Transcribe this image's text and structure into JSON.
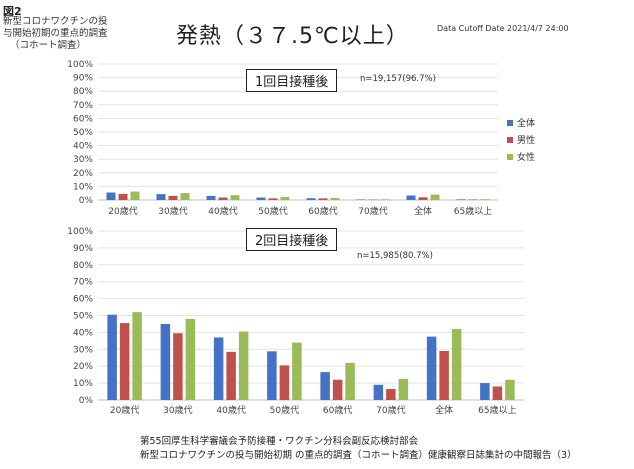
{
  "figure_label": "図2",
  "survey_title_lines": [
    "新型コロナワクチンの投",
    "与開始初期の重点的調査",
    "（コホート調査）"
  ],
  "main_title": "発熱（３７.5℃以上）",
  "cutoff": "Data Cutoff Date 2021/4/7 24:00",
  "legend": [
    "全体",
    "男性",
    "女性"
  ],
  "footer_lines": [
    "第55回厚生科学審議会予防接種・ワクチン分科会副反応検討部会",
    "新型コロナワクチンの投与開始初期 の重点的調査（コホート調査）健康観察日誌集計の中間報告（3）"
  ],
  "colors": {
    "全体": "#4472c4",
    "男性": "#c0504d",
    "女性": "#9bbb59"
  },
  "chart_data": [
    {
      "type": "bar",
      "dose_label": "1回目接種後",
      "n_label": "n=19,157(96.7%)",
      "categories": [
        "20歳代",
        "30歳代",
        "40歳代",
        "50歳代",
        "60歳代",
        "70歳代",
        "全体",
        "65歳以上"
      ],
      "y_ticks": [
        "0%",
        "10%",
        "20%",
        "30%",
        "40%",
        "50%",
        "60%",
        "70%",
        "80%",
        "90%",
        "100%"
      ],
      "ylim": [
        0,
        100
      ],
      "series": [
        {
          "name": "全体",
          "values": [
            5.5,
            4.3,
            3.0,
            1.8,
            1.3,
            0.4,
            3.3,
            0.5
          ]
        },
        {
          "name": "男性",
          "values": [
            4.5,
            3.0,
            1.8,
            1.2,
            1.2,
            0.3,
            2.0,
            0.4
          ]
        },
        {
          "name": "女性",
          "values": [
            6.2,
            5.1,
            3.6,
            2.2,
            1.5,
            0.5,
            4.0,
            0.6
          ]
        }
      ]
    },
    {
      "type": "bar",
      "dose_label": "2回目接種後",
      "n_label": "n=15,985(80.7%)",
      "categories": [
        "20歳代",
        "30歳代",
        "40歳代",
        "50歳代",
        "60歳代",
        "70歳代",
        "全体",
        "65歳以上"
      ],
      "y_ticks": [
        "0%",
        "10%",
        "20%",
        "30%",
        "40%",
        "50%",
        "60%",
        "70%",
        "80%",
        "90%",
        "100%"
      ],
      "ylim": [
        0,
        100
      ],
      "series": [
        {
          "name": "全体",
          "values": [
            50.5,
            45.0,
            37.0,
            28.8,
            16.5,
            9.0,
            37.5,
            10.0
          ]
        },
        {
          "name": "男性",
          "values": [
            45.5,
            39.5,
            28.5,
            20.5,
            12.0,
            6.5,
            29.0,
            8.0
          ]
        },
        {
          "name": "女性",
          "values": [
            52.0,
            48.0,
            40.5,
            34.0,
            22.0,
            12.5,
            42.0,
            12.0
          ]
        }
      ]
    }
  ]
}
